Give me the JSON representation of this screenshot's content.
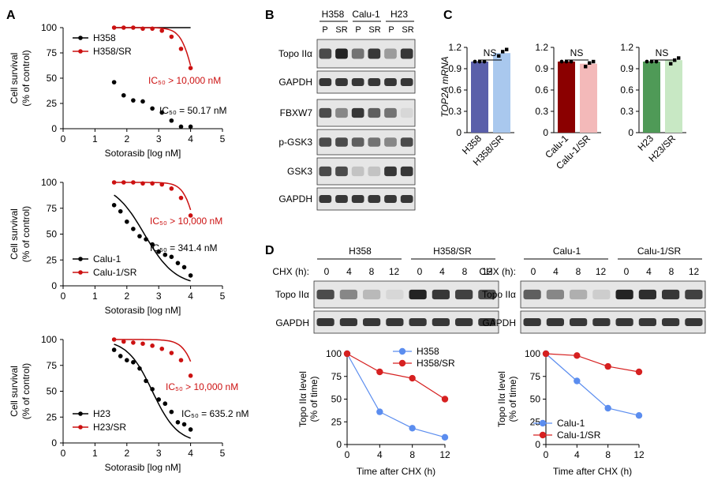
{
  "panels": {
    "A": "A",
    "B": "B",
    "C": "C",
    "D": "D"
  },
  "colors": {
    "parental": "#000000",
    "resistant": "#cc1111",
    "d_blue": "#5b8def",
    "d_red": "#d62020",
    "c_h358": "#5a5faa",
    "c_h358sr": "#a9c8ee",
    "c_calu": "#8b0000",
    "c_calusr": "#f3b9b9",
    "c_h23": "#4f9a57",
    "c_h23sr": "#c8e8c4"
  },
  "common": {
    "ylabel1": "Cell survival",
    "ylabel2": "(% of control)",
    "xlabel": "Sotorasib [log nM]"
  },
  "chart_data": [
    {
      "type": "scatter",
      "panel": "A",
      "xlim": [
        0,
        5
      ],
      "ylim": [
        0,
        100
      ],
      "xticks": [
        "0",
        "1",
        "2",
        "3",
        "4",
        "5"
      ],
      "yticks": [
        "0",
        "25",
        "50",
        "75",
        "100"
      ],
      "legend": [
        "H358",
        "H358/SR"
      ],
      "ic50_sr": "IC₅₀ > 10,000 nM",
      "ic50_p": "IC₅₀ = 50.17 nM",
      "series": [
        {
          "name": "H358",
          "x": [
            1.6,
            1.9,
            2.2,
            2.5,
            2.8,
            3.1,
            3.4,
            3.7,
            4.0
          ],
          "y": [
            46,
            33,
            28,
            27,
            20,
            16,
            8,
            2,
            2
          ],
          "fit": [
            20,
            1.8
          ]
        },
        {
          "name": "H358/SR",
          "x": [
            1.6,
            1.9,
            2.2,
            2.5,
            2.8,
            3.1,
            3.4,
            3.7,
            4.0
          ],
          "y": [
            100,
            100,
            100,
            99,
            99,
            97,
            91,
            79,
            60
          ],
          "fit": [
            4.1,
            2.2
          ]
        }
      ]
    },
    {
      "type": "scatter",
      "panel": "A",
      "xlim": [
        0,
        5
      ],
      "ylim": [
        0,
        100
      ],
      "xticks": [
        "0",
        "1",
        "2",
        "3",
        "4",
        "5"
      ],
      "yticks": [
        "0",
        "25",
        "50",
        "75",
        "100"
      ],
      "legend": [
        "Calu-1",
        "Calu-1/SR"
      ],
      "ic50_sr": "IC₅₀ > 10,000 nM",
      "ic50_p": "IC₅₀ = 341.4 nM",
      "series": [
        {
          "name": "Calu-1",
          "x": [
            1.6,
            1.8,
            2.0,
            2.2,
            2.4,
            2.6,
            2.8,
            3.0,
            3.2,
            3.4,
            3.6,
            3.8,
            4.0
          ],
          "y": [
            78,
            72,
            62,
            55,
            48,
            45,
            40,
            33,
            30,
            28,
            22,
            18,
            10
          ],
          "fit": [
            2.55,
            0.9
          ]
        },
        {
          "name": "Calu-1/SR",
          "x": [
            1.6,
            1.9,
            2.2,
            2.5,
            2.8,
            3.1,
            3.4,
            3.7,
            4.0
          ],
          "y": [
            100,
            100,
            100,
            99,
            99,
            98,
            94,
            85,
            68
          ],
          "fit": [
            4.2,
            2.2
          ]
        }
      ]
    },
    {
      "type": "scatter",
      "panel": "A",
      "xlim": [
        0,
        5
      ],
      "ylim": [
        0,
        100
      ],
      "xticks": [
        "0",
        "1",
        "2",
        "3",
        "4",
        "5"
      ],
      "yticks": [
        "0",
        "25",
        "50",
        "75",
        "100"
      ],
      "legend": [
        "H23",
        "H23/SR"
      ],
      "ic50_sr": "IC₅₀ > 10,000 nM",
      "ic50_p": "IC₅₀ = 635.2 nM",
      "series": [
        {
          "name": "H23",
          "x": [
            1.6,
            1.8,
            2.0,
            2.2,
            2.4,
            2.6,
            2.8,
            3.0,
            3.2,
            3.4,
            3.6,
            3.8,
            4.0
          ],
          "y": [
            90,
            84,
            80,
            78,
            72,
            60,
            52,
            42,
            38,
            30,
            20,
            18,
            13
          ],
          "fit": [
            2.8,
            1.1
          ]
        },
        {
          "name": "H23/SR",
          "x": [
            1.6,
            1.9,
            2.2,
            2.5,
            2.8,
            3.1,
            3.4,
            3.7,
            4.0
          ],
          "y": [
            100,
            98,
            97,
            96,
            94,
            91,
            87,
            80,
            65
          ],
          "fit": [
            4.3,
            1.9
          ]
        }
      ]
    },
    {
      "type": "bar",
      "panel": "C",
      "ylabel": "TOP2A mRNA",
      "ylim": [
        0,
        1.2
      ],
      "yticks": [
        "0",
        "0.3",
        "0.6",
        "0.9",
        "1.2"
      ],
      "sig": "NS",
      "groups": [
        {
          "categories": [
            "H358",
            "H358/SR"
          ],
          "values": [
            1.0,
            1.12
          ],
          "points": [
            [
              1.0,
              1.0,
              1.0
            ],
            [
              1.08,
              1.14,
              1.17
            ]
          ]
        },
        {
          "categories": [
            "Calu-1",
            "Calu-1/SR"
          ],
          "values": [
            1.0,
            0.97
          ],
          "points": [
            [
              1.0,
              1.0,
              1.0
            ],
            [
              0.93,
              0.98,
              1.0
            ]
          ]
        },
        {
          "categories": [
            "H23",
            "H23/SR"
          ],
          "values": [
            1.0,
            1.02
          ],
          "points": [
            [
              1.0,
              1.0,
              1.0
            ],
            [
              0.97,
              1.02,
              1.05
            ]
          ]
        }
      ]
    },
    {
      "type": "line",
      "panel": "D",
      "x": [
        0,
        4,
        8,
        12
      ],
      "xticks": [
        "0",
        "4",
        "8",
        "12"
      ],
      "yticks": [
        "0",
        "25",
        "50",
        "75",
        "100"
      ],
      "ylim": [
        0,
        100
      ],
      "xlabel": "Time after CHX (h)",
      "ylabel1": "Topo IIα level",
      "ylabel2": "(% of time)",
      "series": [
        {
          "name": "H358",
          "values": [
            100,
            36,
            18,
            8
          ]
        },
        {
          "name": "H358/SR",
          "values": [
            100,
            80,
            73,
            50
          ]
        }
      ]
    },
    {
      "type": "line",
      "panel": "D",
      "x": [
        0,
        4,
        8,
        12
      ],
      "xticks": [
        "0",
        "4",
        "8",
        "12"
      ],
      "yticks": [
        "0",
        "25",
        "50",
        "75",
        "100"
      ],
      "ylim": [
        0,
        100
      ],
      "xlabel": "Time after CHX (h)",
      "ylabel1": "Topo IIα level",
      "ylabel2": "(% of time)",
      "series": [
        {
          "name": "Calu-1",
          "values": [
            100,
            70,
            40,
            32
          ]
        },
        {
          "name": "Calu-1/SR",
          "values": [
            100,
            98,
            86,
            80
          ]
        }
      ]
    }
  ],
  "blotB": {
    "cells": [
      "H358",
      "Calu-1",
      "H23"
    ],
    "lanes": [
      "P",
      "SR",
      "P",
      "SR",
      "P",
      "SR"
    ],
    "rows": [
      {
        "label": "Topo IIα",
        "v": [
          0.8,
          1.0,
          0.6,
          0.9,
          0.4,
          0.9
        ]
      },
      {
        "label": "GAPDH",
        "v": [
          0.9,
          0.9,
          0.9,
          0.9,
          0.9,
          0.9
        ]
      },
      {
        "label": "FBXW7",
        "v": [
          0.8,
          0.5,
          0.9,
          0.7,
          0.6,
          0.1
        ]
      },
      {
        "label": "p-GSK3",
        "v": [
          0.8,
          0.8,
          0.7,
          0.6,
          0.5,
          0.8
        ]
      },
      {
        "label": "GSK3",
        "v": [
          0.8,
          0.8,
          0.2,
          0.2,
          0.9,
          0.9
        ]
      },
      {
        "label": "GAPDH",
        "v": [
          0.9,
          0.9,
          0.9,
          0.9,
          0.9,
          0.9
        ]
      }
    ]
  },
  "blotD": [
    {
      "title_p": "H358",
      "title_sr": "H358/SR",
      "chx": "CHX (h):",
      "times": [
        "0",
        "4",
        "8",
        "12"
      ],
      "rows": [
        {
          "label": "Topo IIα",
          "v": [
            0.8,
            0.5,
            0.25,
            0.1,
            1.0,
            0.9,
            0.85,
            0.8
          ]
        },
        {
          "label": "GAPDH",
          "v": [
            0.9,
            0.9,
            0.9,
            0.9,
            0.9,
            0.9,
            0.9,
            0.9
          ]
        }
      ]
    },
    {
      "title_p": "Calu-1",
      "title_sr": "Calu-1/SR",
      "chx": "CHX (h):",
      "times": [
        "0",
        "4",
        "8",
        "12"
      ],
      "rows": [
        {
          "label": "Topo IIα",
          "v": [
            0.7,
            0.5,
            0.3,
            0.15,
            1.0,
            0.95,
            0.9,
            0.85
          ]
        },
        {
          "label": "GAPDH",
          "v": [
            0.9,
            0.9,
            0.9,
            0.9,
            0.9,
            0.9,
            0.9,
            0.9
          ]
        }
      ]
    }
  ]
}
